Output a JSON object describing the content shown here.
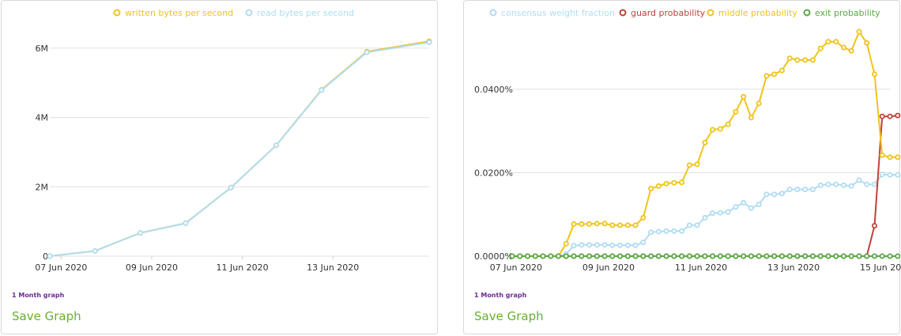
{
  "charts": [
    {
      "period_label": "1 Month graph",
      "save_label": "Save Graph"
    },
    {
      "period_label": "1 Month graph",
      "save_label": "Save Graph"
    }
  ],
  "chart_data": [
    {
      "type": "line",
      "x_type": "date",
      "x_ticks": [
        "07 Jun 2020",
        "09 Jun 2020",
        "11 Jun 2020",
        "13 Jun 2020"
      ],
      "xlim": [
        "2020-06-06T18:00",
        "2020-06-15T03:00"
      ],
      "y_ticks": [
        {
          "value": 0,
          "label": "0"
        },
        {
          "value": 2000000,
          "label": "2M"
        },
        {
          "value": 4000000,
          "label": "4M"
        },
        {
          "value": 6000000,
          "label": "6M"
        }
      ],
      "ylim": [
        0,
        6500000
      ],
      "legend_position": "top",
      "grid": true,
      "series": [
        {
          "name": "written bytes per second",
          "color": "#f0c419",
          "points": [
            [
              "2020-06-06T18:00",
              0
            ],
            [
              "2020-06-07T18:00",
              150000
            ],
            [
              "2020-06-08T18:00",
              670000
            ],
            [
              "2020-06-09T18:00",
              950000
            ],
            [
              "2020-06-10T18:00",
              1980000
            ],
            [
              "2020-06-11T18:00",
              3200000
            ],
            [
              "2020-06-12T18:00",
              4800000
            ],
            [
              "2020-06-13T18:00",
              5900000
            ],
            [
              "2020-06-15T03:00",
              6200000
            ]
          ]
        },
        {
          "name": "read bytes per second",
          "color": "#b0dcf2",
          "points": [
            [
              "2020-06-06T18:00",
              0
            ],
            [
              "2020-06-07T18:00",
              150000
            ],
            [
              "2020-06-08T18:00",
              670000
            ],
            [
              "2020-06-09T18:00",
              950000
            ],
            [
              "2020-06-10T18:00",
              1980000
            ],
            [
              "2020-06-11T18:00",
              3200000
            ],
            [
              "2020-06-12T18:00",
              4790000
            ],
            [
              "2020-06-13T18:00",
              5880000
            ],
            [
              "2020-06-15T03:00",
              6170000
            ]
          ]
        }
      ]
    },
    {
      "type": "line",
      "x_type": "date",
      "x_ticks": [
        "07 Jun 2020",
        "09 Jun 2020",
        "11 Jun 2020",
        "13 Jun 2020",
        "15 Jun 2020"
      ],
      "xlim": [
        "2020-06-06T22:00",
        "2020-06-15T02:00"
      ],
      "y_ticks": [
        {
          "value": 0,
          "label": "0.0000%"
        },
        {
          "value": 0.02,
          "label": "0.0200%"
        },
        {
          "value": 0.04,
          "label": "0.0400%"
        }
      ],
      "ylim": [
        0,
        0.054
      ],
      "legend_position": "top",
      "grid": true,
      "start": "2020-06-06T22:00",
      "step_hours": 4,
      "series": [
        {
          "name": "consensus weight fraction",
          "color": "#b0dcf2",
          "values": [
            0,
            0,
            0,
            0,
            0,
            0,
            0,
            0.0005,
            0.0025,
            0.0027,
            0.0027,
            0.0027,
            0.0027,
            0.0026,
            0.0026,
            0.0026,
            0.0026,
            0.0033,
            0.0057,
            0.0059,
            0.006,
            0.006,
            0.006,
            0.0074,
            0.0074,
            0.0092,
            0.0103,
            0.0104,
            0.0106,
            0.0118,
            0.0128,
            0.0115,
            0.0124,
            0.0148,
            0.0148,
            0.015,
            0.016,
            0.016,
            0.016,
            0.016,
            0.017,
            0.0172,
            0.0172,
            0.017,
            0.0168,
            0.0182,
            0.0172,
            0.0172,
            0.0196,
            0.0195,
            0.0195
          ]
        },
        {
          "name": "guard probability",
          "color": "#c0403a",
          "values": [
            0,
            0,
            0,
            0,
            0,
            0,
            0,
            0,
            0,
            0,
            0,
            0,
            0,
            0,
            0,
            0,
            0,
            0,
            0,
            0,
            0,
            0,
            0,
            0,
            0,
            0,
            0,
            0,
            0,
            0,
            0,
            0,
            0,
            0,
            0,
            0,
            0,
            0,
            0,
            0,
            0,
            0,
            0,
            0,
            0,
            0,
            0,
            0.0073,
            0.0335,
            0.0335,
            0.0337
          ]
        },
        {
          "name": "middle probability",
          "color": "#f0c419",
          "values": [
            0,
            0,
            0,
            0,
            0,
            0,
            0,
            0.003,
            0.0077,
            0.0077,
            0.0077,
            0.0078,
            0.0078,
            0.0074,
            0.0074,
            0.0074,
            0.0074,
            0.0092,
            0.0162,
            0.0168,
            0.0174,
            0.0176,
            0.0177,
            0.0218,
            0.022,
            0.0272,
            0.0303,
            0.0305,
            0.0316,
            0.0346,
            0.0382,
            0.0332,
            0.0366,
            0.0432,
            0.0436,
            0.0445,
            0.0474,
            0.047,
            0.047,
            0.047,
            0.0498,
            0.0514,
            0.0514,
            0.05,
            0.0492,
            0.0538,
            0.0511,
            0.0436,
            0.0242,
            0.0237,
            0.0237
          ]
        },
        {
          "name": "exit probability",
          "color": "#5ba845",
          "values": [
            0,
            0,
            0,
            0,
            0,
            0,
            0,
            0,
            0,
            0,
            0,
            0,
            0,
            0,
            0,
            0,
            0,
            0,
            0,
            0,
            0,
            0,
            0,
            0,
            0,
            0,
            0,
            0,
            0,
            0,
            0,
            0,
            0,
            0,
            0,
            0,
            0,
            0,
            0,
            0,
            0,
            0,
            0,
            0,
            0,
            0,
            0,
            0,
            0,
            0,
            0
          ]
        }
      ]
    }
  ]
}
